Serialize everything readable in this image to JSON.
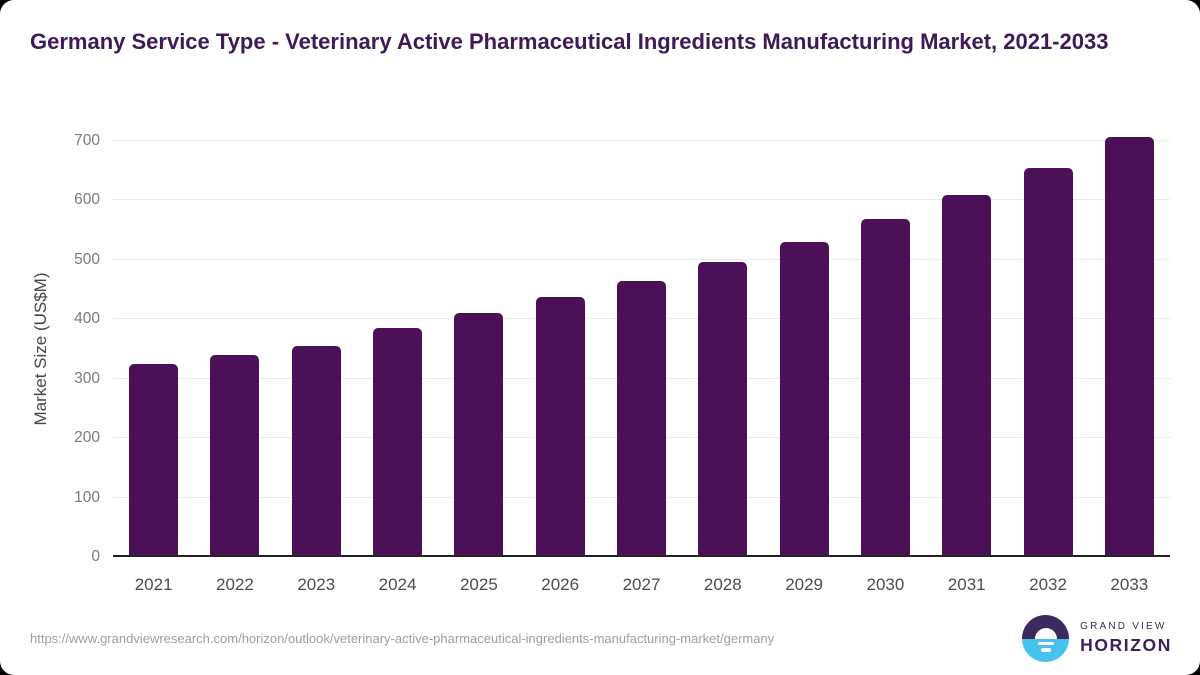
{
  "title": "Germany Service Type - Veterinary Active Pharmaceutical Ingredients Manufacturing Market, 2021-2033",
  "chart_data": {
    "type": "bar",
    "title": "Germany Service Type - Veterinary Active Pharmaceutical Ingredients Manufacturing Market, 2021-2033",
    "categories": [
      "2021",
      "2022",
      "2023",
      "2024",
      "2025",
      "2026",
      "2027",
      "2028",
      "2029",
      "2030",
      "2031",
      "2032",
      "2033"
    ],
    "values": [
      325,
      340,
      355,
      386,
      410,
      437,
      465,
      496,
      530,
      568,
      610,
      655,
      706
    ],
    "xlabel": "",
    "ylabel": "Market Size (US$M)",
    "ylim": [
      0,
      700
    ],
    "yticks": [
      0,
      100,
      200,
      300,
      400,
      500,
      600,
      700
    ],
    "grid": "horizontal",
    "legend_position": "none",
    "bar_color": "#4b1058"
  },
  "colors": {
    "title_text": "#3e1a56",
    "bar": "#4b1058",
    "gridline": "#eaeaea",
    "axis_line": "#222222",
    "logo_purple": "#3b2a5e",
    "logo_blue": "#47c2ef"
  },
  "footer": {
    "source_url": "https://www.grandviewresearch.com/horizon/outlook/veterinary-active-pharmaceutical-ingredients-manufacturing-market/germany",
    "logo": {
      "brand_top": "GRAND VIEW",
      "brand_bottom": "HORIZON"
    }
  }
}
